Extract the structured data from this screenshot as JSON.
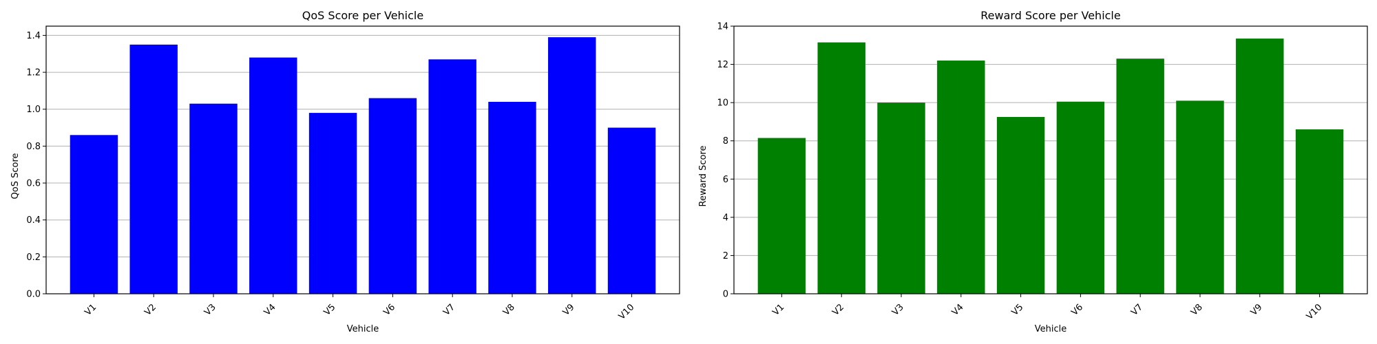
{
  "chart_data": [
    {
      "type": "bar",
      "title": "QoS Score per Vehicle",
      "xlabel": "Vehicle",
      "ylabel": "QoS Score",
      "categories": [
        "V1",
        "V2",
        "V3",
        "V4",
        "V5",
        "V6",
        "V7",
        "V8",
        "V9",
        "V10"
      ],
      "values": [
        0.86,
        1.35,
        1.03,
        1.28,
        0.98,
        1.06,
        1.27,
        1.04,
        1.39,
        0.9
      ],
      "ylim": [
        0,
        1.45
      ],
      "yticks": [
        "0.0",
        "0.2",
        "0.4",
        "0.6",
        "0.8",
        "1.0",
        "1.2",
        "1.4"
      ],
      "ytick_values": [
        0,
        0.2,
        0.4,
        0.6,
        0.8,
        1.0,
        1.2,
        1.4
      ],
      "color": "#0000ff",
      "grid": "y-axis"
    },
    {
      "type": "bar",
      "title": "Reward Score per Vehicle",
      "xlabel": "Vehicle",
      "ylabel": "Reward Score",
      "categories": [
        "V1",
        "V2",
        "V3",
        "V4",
        "V5",
        "V6",
        "V7",
        "V8",
        "V9",
        "V10"
      ],
      "values": [
        8.15,
        13.15,
        10.0,
        12.2,
        9.25,
        10.05,
        12.3,
        10.1,
        13.35,
        8.6
      ],
      "ylim": [
        0,
        14
      ],
      "yticks": [
        "0",
        "2",
        "4",
        "6",
        "8",
        "10",
        "12",
        "14"
      ],
      "ytick_values": [
        0,
        2,
        4,
        6,
        8,
        10,
        12,
        14
      ],
      "color": "#008000",
      "grid": "y-axis"
    }
  ]
}
